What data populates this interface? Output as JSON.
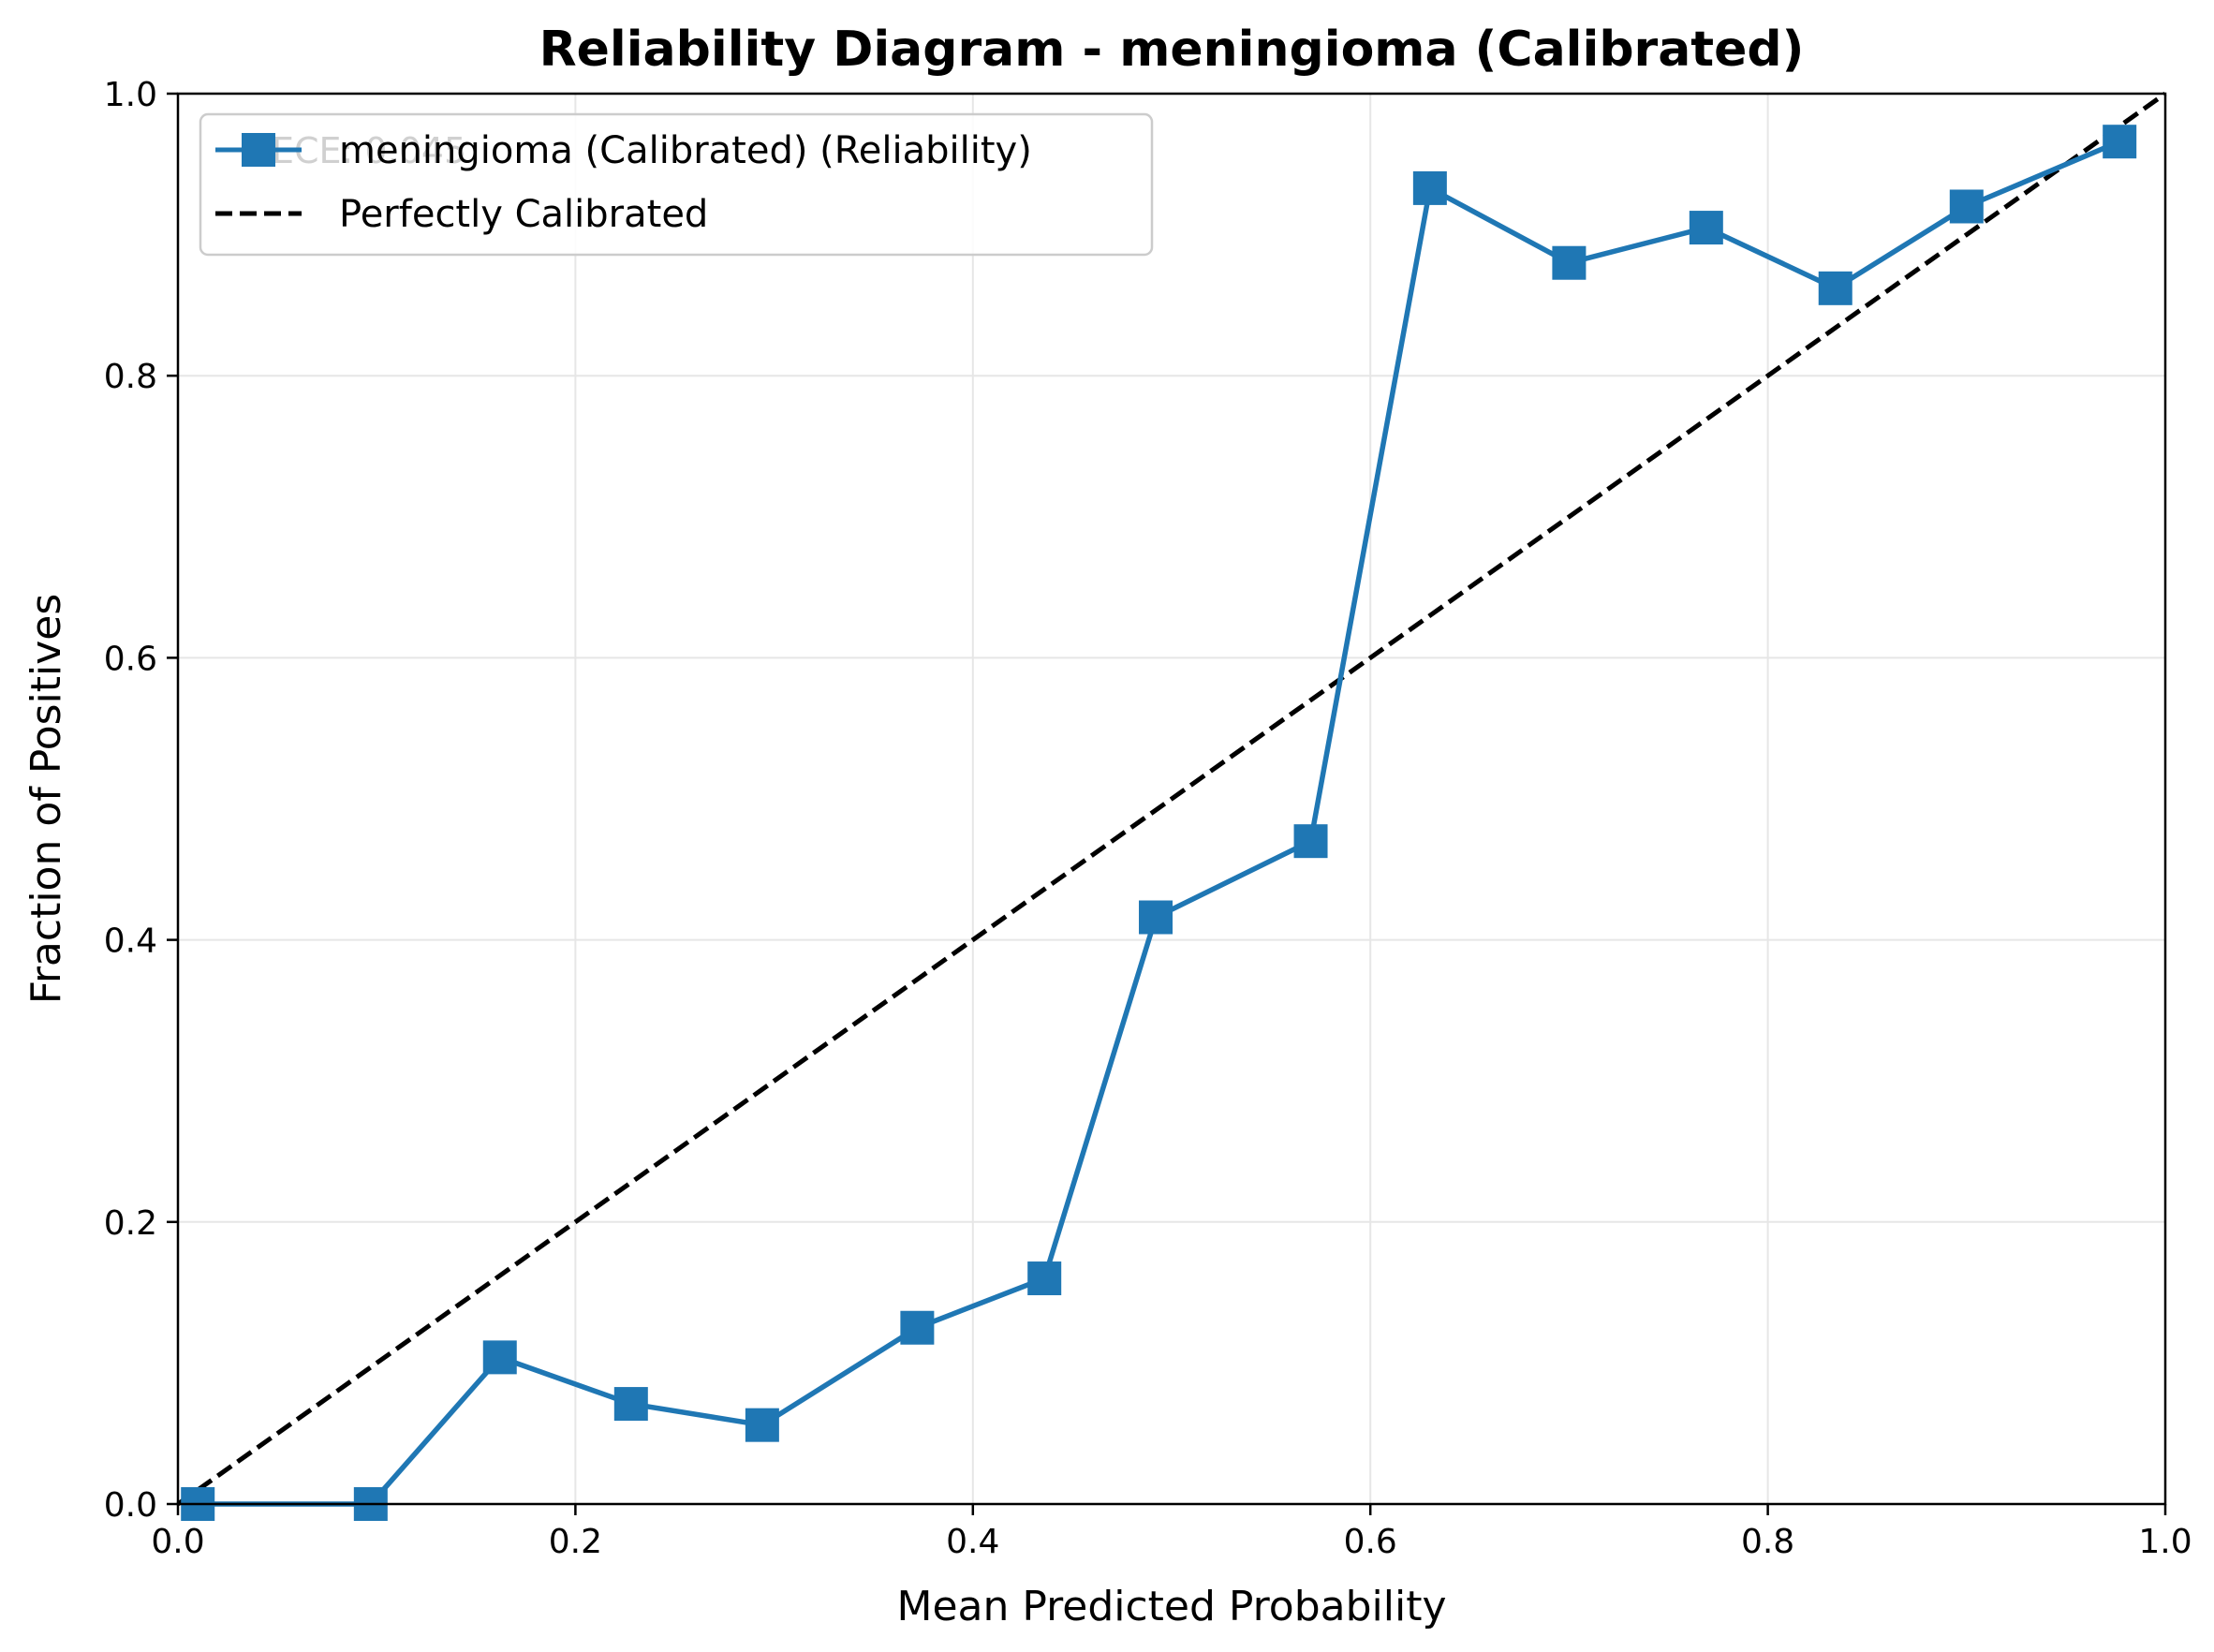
{
  "chart_data": {
    "type": "line",
    "title": "Reliability Diagram - meningioma (Calibrated)",
    "xlabel": "Mean Predicted Probability",
    "ylabel": "Fraction of Positives",
    "xlim": [
      0,
      1
    ],
    "ylim": [
      0,
      1
    ],
    "xticks": [
      0.0,
      0.2,
      0.4,
      0.6,
      0.8,
      1.0
    ],
    "yticks": [
      0.0,
      0.2,
      0.4,
      0.6,
      0.8,
      1.0
    ],
    "grid": true,
    "legend_position": "top-left",
    "annotation": "ECE: 0.045",
    "series": [
      {
        "name": "meningioma (Calibrated) (Reliability)",
        "color": "#1f77b4",
        "marker": "square",
        "x": [
          0.01,
          0.097,
          0.162,
          0.228,
          0.294,
          0.372,
          0.436,
          0.492,
          0.57,
          0.63,
          0.7,
          0.769,
          0.834,
          0.9,
          0.977
        ],
        "y": [
          0.0,
          0.0,
          0.104,
          0.071,
          0.056,
          0.125,
          0.16,
          0.416,
          0.47,
          0.933,
          0.88,
          0.905,
          0.862,
          0.92,
          0.966
        ]
      },
      {
        "name": "Perfectly Calibrated",
        "color": "#000000",
        "style": "dashed",
        "x": [
          0,
          1
        ],
        "y": [
          0,
          1
        ]
      }
    ]
  }
}
